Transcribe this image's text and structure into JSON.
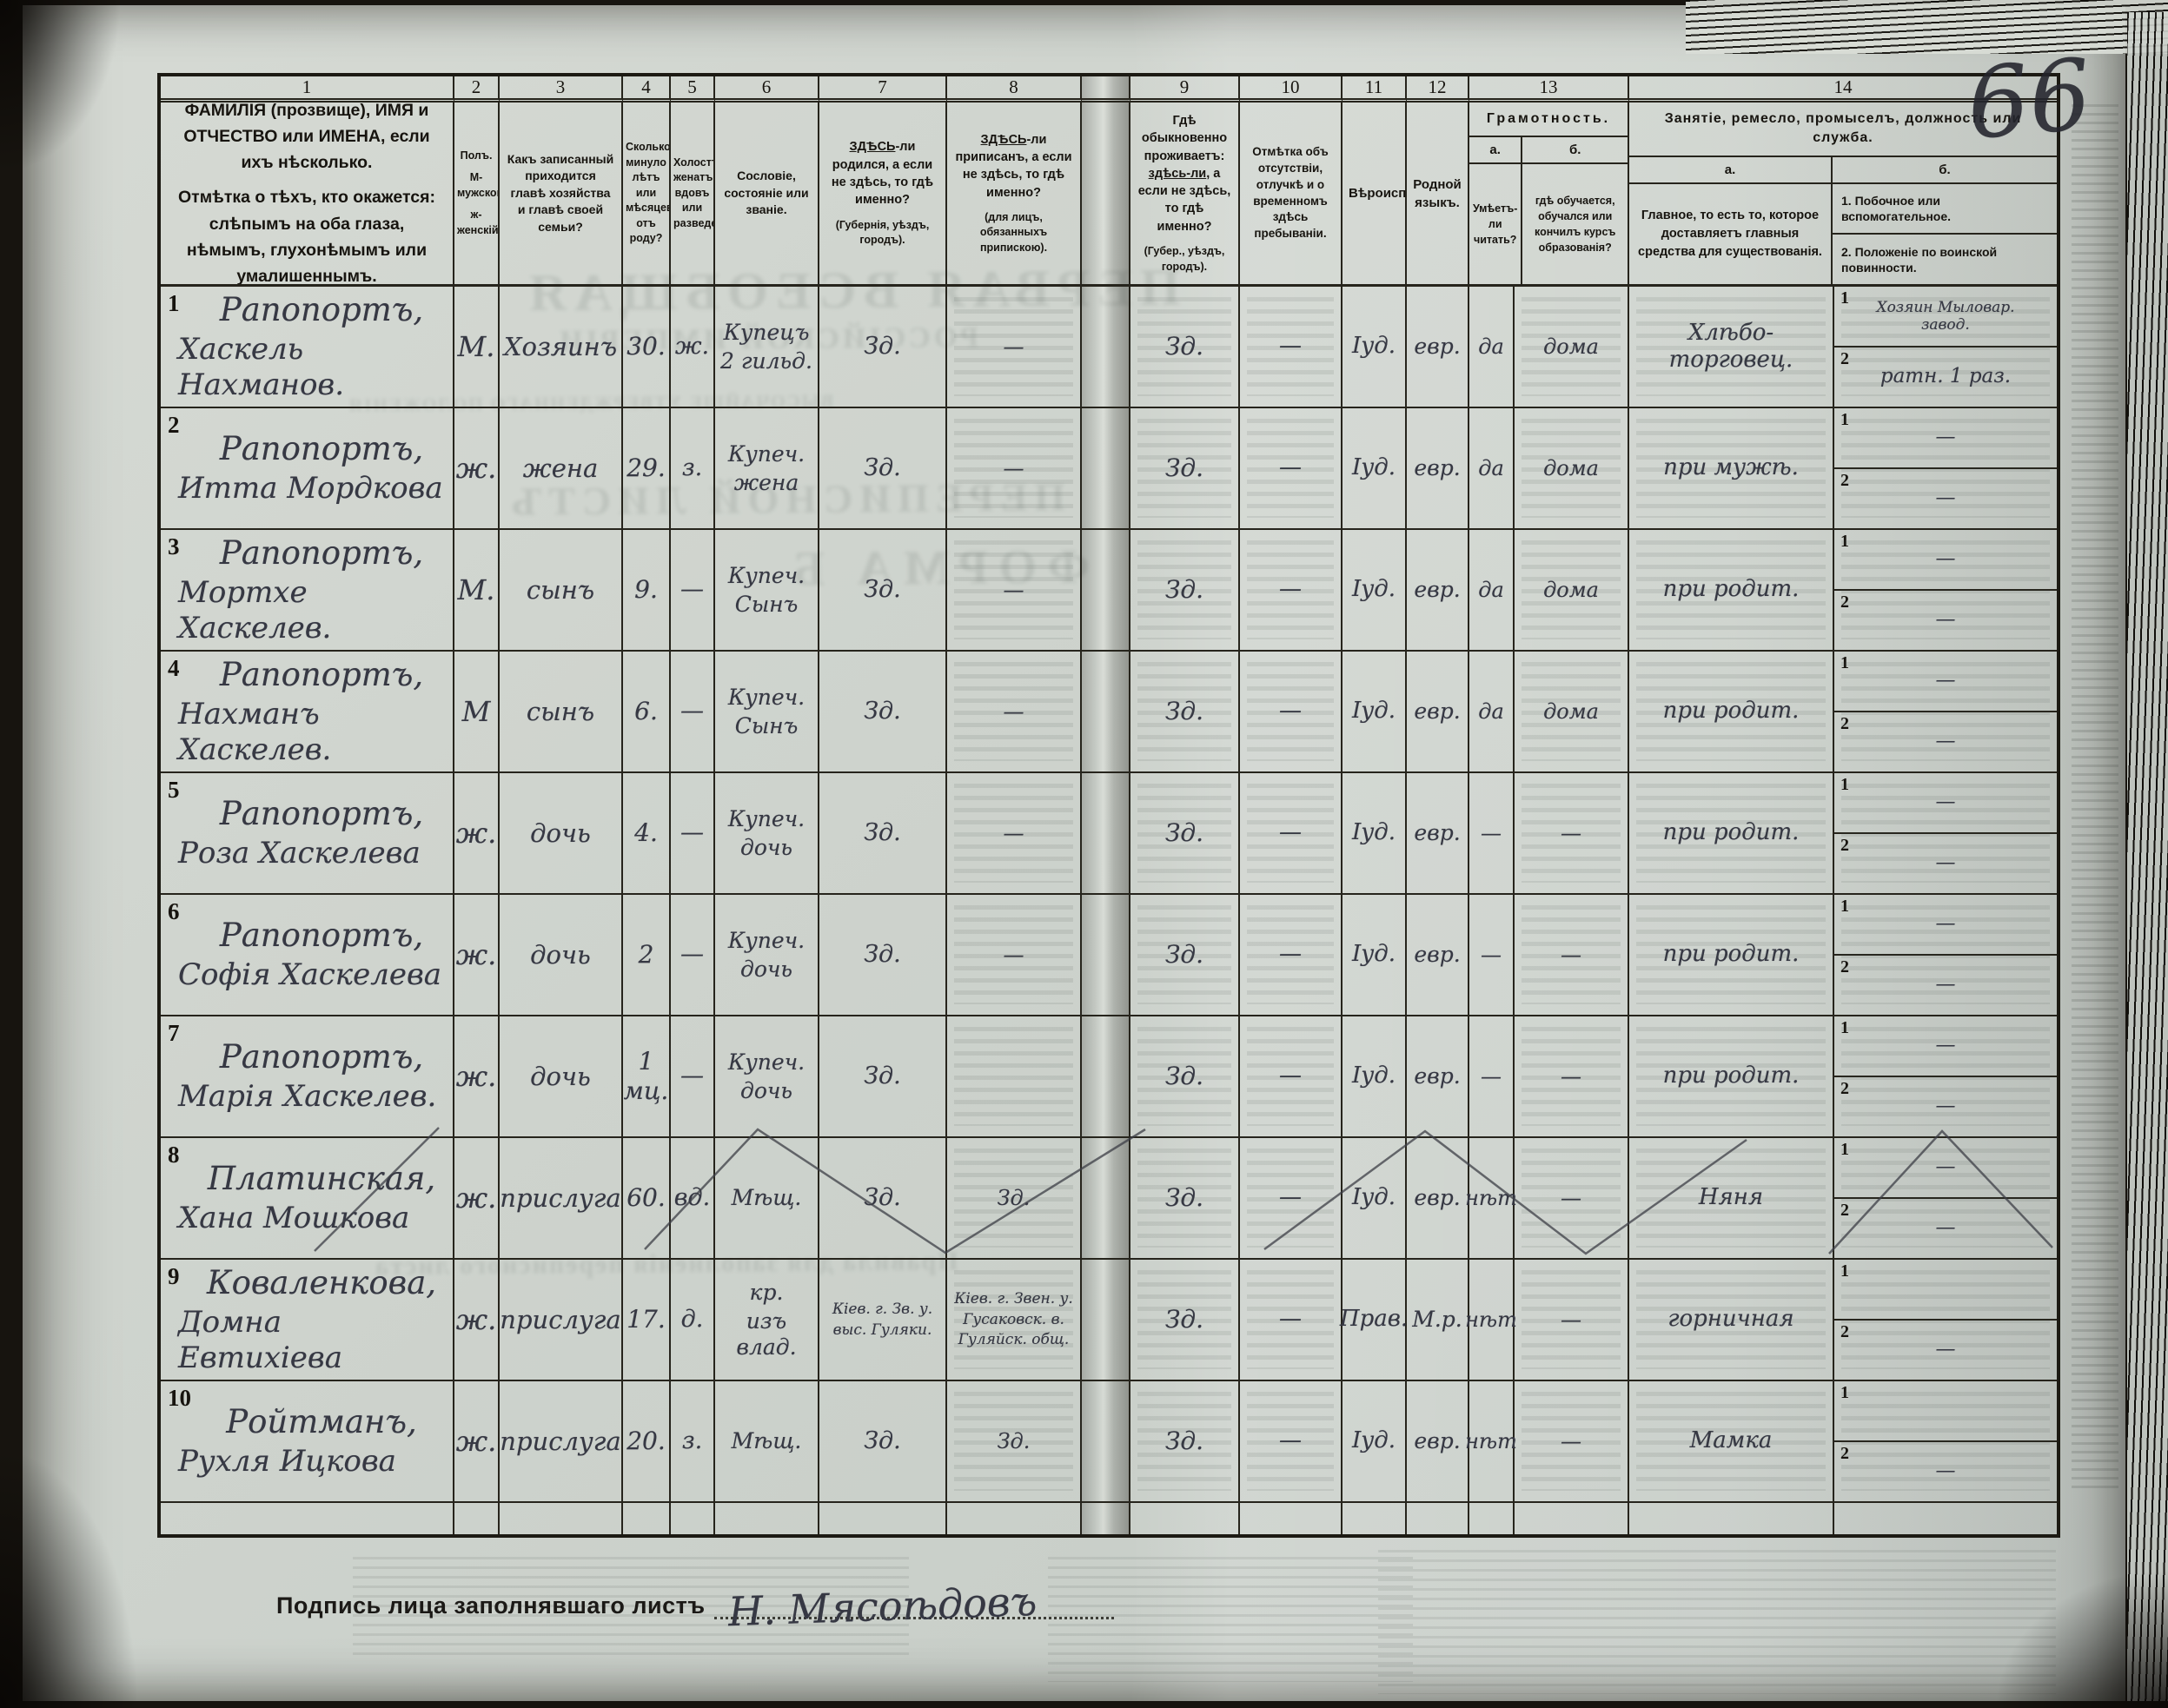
{
  "page": {
    "number": "66",
    "signature_label": "Подпись лица заполнявшаго листъ",
    "signature": "Н. Мясоѣдовъ"
  },
  "header": {
    "numbers": [
      "1",
      "2",
      "3",
      "4",
      "5",
      "6",
      "7",
      "8",
      "9",
      "10",
      "11",
      "12",
      "13",
      "14"
    ],
    "c1_line1": "ФАМИЛІЯ (прозвище), ИМЯ и ОТЧЕСТВО или ИМЕНА, если ихъ нѣсколько.",
    "c1_line2": "Отмѣтка о тѣхъ, кто окажется: слѣпымъ на оба глаза, нѣмымъ, глухонѣмымъ или умалишеннымъ.",
    "c2_line1": "Полъ.",
    "c2_line2": "М-мужской.",
    "c2_line3": "ж-женскій.",
    "c3": "Какъ записанный приходится главѣ хозяйства и главѣ своей семьи?",
    "c4": "Сколько минуло лѣтъ или мѣсяцевъ отъ роду?",
    "c5": "Холостъ, женатъ, вдовъ или разведенъ.",
    "c6": "Сословіе, состояніе или званіе.",
    "c7_lead": "ЗДѢСЬ",
    "c7_rest": "-ли родился, а если не здѣсь, то гдѣ именно?",
    "c7_note": "(Губернія, уѣздъ, городъ).",
    "c8_lead": "ЗДѢСЬ",
    "c8_rest": "-ли приписанъ, а если не здѣсь, то гдѣ именно?",
    "c8_note": "(для лицъ, обязанныхъ припискою).",
    "c9_pre": "Гдѣ обыкновенно проживаетъ: ",
    "c9_lead": "здѣсь-ли",
    "c9_rest": ", а если не здѣсь, то гдѣ именно?",
    "c9_note": "(Губер., уѣздъ, городъ).",
    "c10": "Отмѣтка объ отсутствіи, отлучкѣ и о временномъ здѣсь пребываніи.",
    "c11": "Вѣроисповѣданіе.",
    "c12": "Родной языкъ.",
    "c13_title": "Грамотность.",
    "c13_a_label": "а.",
    "c13_b_label": "б.",
    "c13_a_text": "Умѣетъ-ли читать?",
    "c13_b_text": "гдѣ обучается, обучался или кончилъ курсъ образованія?",
    "c14_title": "Занятіе, ремесло, промыселъ, должность или служба.",
    "c14_a_label": "а.",
    "c14_b_label": "б.",
    "c14_a_text": "Главное, то есть то, которое доставляетъ главныя средства для существованія.",
    "c14_b_item1": "1. Побочное или вспомогательное.",
    "c14_b_item2": "2. Положеніе по воинской повинности."
  },
  "side_labels": [
    "1",
    "2"
  ],
  "records": [
    {
      "num": "1",
      "surname": "Рапопортъ,",
      "given": "Хаскель Нахманов.",
      "sex": "М.",
      "relation": "Хозяинъ",
      "age": "30.",
      "marital": "ж.",
      "estate": [
        "Купецъ",
        "2 гильд."
      ],
      "born": "Зд.",
      "registered": "—",
      "resides": "Зд.",
      "absence": "—",
      "religion": "Іуд.",
      "language": "евр.",
      "reads": "да",
      "school": "дома",
      "occupation": "Хлѣбо- торговец.",
      "side1": [
        "Хозяин Мыловар.",
        "завод."
      ],
      "side2": "ратн. 1 раз."
    },
    {
      "num": "2",
      "surname": "Рапопортъ,",
      "given": "Итта Мордкова",
      "sex": "ж.",
      "relation": "жена",
      "age": "29.",
      "marital": "з.",
      "estate": [
        "Купеч.",
        "жена"
      ],
      "born": "Зд.",
      "registered": "—",
      "resides": "Зд.",
      "absence": "—",
      "religion": "Іуд.",
      "language": "евр.",
      "reads": "да",
      "school": "дома",
      "occupation": "при мужѣ.",
      "side1": "—",
      "side2": "—"
    },
    {
      "num": "3",
      "surname": "Рапопортъ,",
      "given": "Мортхе Хаскелев.",
      "sex": "М.",
      "relation": "сынъ",
      "age": "9.",
      "marital": "—",
      "estate": [
        "Купеч.",
        "Сынъ"
      ],
      "born": "Зд.",
      "registered": "—",
      "resides": "Зд.",
      "absence": "—",
      "religion": "Іуд.",
      "language": "евр.",
      "reads": "да",
      "school": "дома",
      "occupation": "при родит.",
      "side1": "—",
      "side2": "—"
    },
    {
      "num": "4",
      "surname": "Рапопортъ,",
      "given": "Нахманъ Хаскелев.",
      "sex": "М",
      "relation": "сынъ",
      "age": "6.",
      "marital": "—",
      "estate": [
        "Купеч.",
        "Сынъ"
      ],
      "born": "Зд.",
      "registered": "—",
      "resides": "Зд.",
      "absence": "—",
      "religion": "Іуд.",
      "language": "евр.",
      "reads": "да",
      "school": "дома",
      "occupation": "при родит.",
      "side1": "—",
      "side2": "—"
    },
    {
      "num": "5",
      "surname": "Рапопортъ,",
      "given": "Роза Хаскелева",
      "sex": "ж.",
      "relation": "дочь",
      "age": "4.",
      "marital": "—",
      "estate": [
        "Купеч.",
        "дочь"
      ],
      "born": "Зд.",
      "registered": "—",
      "resides": "Зд.",
      "absence": "—",
      "religion": "Іуд.",
      "language": "евр.",
      "reads": "—",
      "school": "—",
      "occupation": "при родит.",
      "side1": "—",
      "side2": "—"
    },
    {
      "num": "6",
      "surname": "Рапопортъ,",
      "given": "Софія Хаскелева",
      "sex": "ж.",
      "relation": "дочь",
      "age": "2",
      "marital": "—",
      "estate": [
        "Купеч.",
        "дочь"
      ],
      "born": "Зд.",
      "registered": "—",
      "resides": "Зд.",
      "absence": "—",
      "religion": "Іуд.",
      "language": "евр.",
      "reads": "—",
      "school": "—",
      "occupation": "при родит.",
      "side1": "—",
      "side2": "—"
    },
    {
      "num": "7",
      "surname": "Рапопортъ,",
      "given": "Марія Хаскелев.",
      "sex": "ж.",
      "relation": "дочь",
      "age": "1 мц.",
      "marital": "—",
      "estate": [
        "Купеч.",
        "дочь"
      ],
      "born": "Зд.",
      "registered": "",
      "resides": "Зд.",
      "absence": "—",
      "religion": "Іуд.",
      "language": "евр.",
      "reads": "—",
      "school": "—",
      "occupation": "при родит.",
      "side1": "—",
      "side2": "—"
    },
    {
      "num": "8",
      "surname": "Платинская,",
      "given": "Хана Мошкова",
      "sex": "ж.",
      "relation": "прислуга",
      "age": "60.",
      "marital": "вд.",
      "estate": "Мѣщ.",
      "born": "Зд.",
      "registered": "Зд.",
      "resides": "Зд.",
      "absence": "—",
      "religion": "Іуд.",
      "language": "евр.",
      "reads": "нѣт",
      "school": "—",
      "occupation": "Няня",
      "side1": "—",
      "side2": "—"
    },
    {
      "num": "9",
      "surname": "Коваленкова,",
      "given": "Домна Евтихіева",
      "sex": "ж.",
      "relation": "прислуга",
      "age": "17.",
      "marital": "д.",
      "estate": [
        "кр.",
        "изъ влад."
      ],
      "born": [
        "Кіев. г. Зв. у.",
        "выс. Гуляки."
      ],
      "registered": [
        "Кіев. г. Звен. у.",
        "Гусаковск. в.",
        "Гуляйск. общ."
      ],
      "resides": "Зд.",
      "absence": "—",
      "religion": "Прав.",
      "language": "М.р.",
      "reads": "нѣт",
      "school": "—",
      "occupation": "горничная",
      "side1": "",
      "side2": "—"
    },
    {
      "num": "10",
      "surname": "Ройтманъ,",
      "given": "Рухля Ицкова",
      "sex": "ж.",
      "relation": "прислуга",
      "age": "20.",
      "marital": "з.",
      "estate": "Мѣщ.",
      "born": "Зд.",
      "registered": "Зд.",
      "resides": "Зд.",
      "absence": "—",
      "religion": "Іуд.",
      "language": "евр.",
      "reads": "нѣт",
      "school": "—",
      "occupation": "Мамка",
      "side1": "",
      "side2": "—"
    }
  ],
  "ghost_text": [
    "ПЕРВАЯ ВСЕОБЩАЯ",
    "РОССІЙСКОЙ ИМПЕРІИ",
    "ВЫСОЧАЙШЕ УТВЕРЖДЕННАГО ПОЛОЖЕНІЯ",
    "ПЕРЕПИСНОЙ ЛИСТЪ",
    "ФОРМА Б",
    "Правила для заполненія переписного листа"
  ]
}
